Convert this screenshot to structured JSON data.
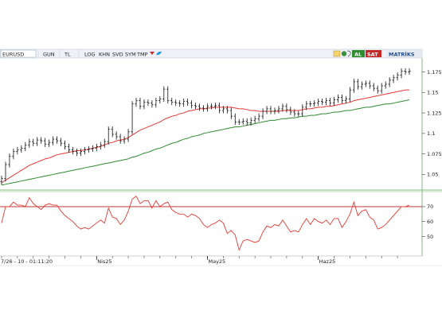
{
  "toolbar": {
    "symbol": "EURUSD",
    "buttons": [
      "GUN",
      "TL",
      "LOG",
      "KHN",
      "SVD",
      "SYM",
      "TMP"
    ],
    "al_label": "AL",
    "sat_label": "SAT",
    "brand": "MATRİKS"
  },
  "footer": {
    "timestamp": "7/26 - 10 - 01:11:20"
  },
  "colors": {
    "accent": "#1d4f91",
    "al": "#2e8b2e",
    "sat": "#c62828",
    "price_bars": "#111111",
    "ma_fast": "#e53935",
    "ma_slow": "#2e8b2e",
    "oscillator": "#e53935",
    "level_line": "#b71c1c",
    "frame_green": "#7fbf7f"
  },
  "icons": [
    "link-icon",
    "globe-icon",
    "ear-icon",
    "dropdown-arrow-icon",
    "twitter-icon"
  ],
  "chart_data": [
    {
      "type": "ohlc",
      "y_ticks": [
        "1.175",
        "1.15",
        "1.125",
        "1.1",
        "1.075",
        "1.05"
      ],
      "y_tick_values": [
        1.175,
        1.15,
        1.125,
        1.1,
        1.075,
        1.05
      ],
      "ylim": [
        1.032,
        1.19
      ],
      "x_labels": [
        {
          "label": "Nis25",
          "index": 24
        },
        {
          "label": "May25",
          "index": 52
        },
        {
          "label": "Haz25",
          "index": 80
        }
      ],
      "n_bars": 104,
      "close": [
        1.045,
        1.062,
        1.072,
        1.078,
        1.08,
        1.082,
        1.086,
        1.09,
        1.088,
        1.092,
        1.091,
        1.087,
        1.089,
        1.093,
        1.091,
        1.088,
        1.084,
        1.08,
        1.078,
        1.076,
        1.078,
        1.08,
        1.081,
        1.082,
        1.084,
        1.086,
        1.09,
        1.105,
        1.099,
        1.096,
        1.091,
        1.093,
        1.102,
        1.136,
        1.14,
        1.133,
        1.138,
        1.137,
        1.135,
        1.14,
        1.142,
        1.154,
        1.14,
        1.138,
        1.137,
        1.136,
        1.139,
        1.137,
        1.134,
        1.133,
        1.131,
        1.13,
        1.133,
        1.133,
        1.134,
        1.128,
        1.13,
        1.128,
        1.121,
        1.114,
        1.114,
        1.115,
        1.113,
        1.116,
        1.118,
        1.121,
        1.127,
        1.13,
        1.127,
        1.128,
        1.13,
        1.133,
        1.129,
        1.126,
        1.124,
        1.124,
        1.132,
        1.136,
        1.136,
        1.137,
        1.139,
        1.138,
        1.14,
        1.137,
        1.141,
        1.144,
        1.14,
        1.142,
        1.153,
        1.163,
        1.157,
        1.16,
        1.161,
        1.158,
        1.155,
        1.152,
        1.158,
        1.16,
        1.165,
        1.168,
        1.171,
        1.176,
        1.175,
        1.176
      ],
      "series": [
        {
          "name": "",
          "color": "#e53935",
          "values": [
            1.04,
            1.043,
            1.046,
            1.049,
            1.052,
            1.055,
            1.058,
            1.061,
            1.063,
            1.065,
            1.067,
            1.069,
            1.07,
            1.072,
            1.074,
            1.075,
            1.076,
            1.077,
            1.078,
            1.079,
            1.079,
            1.08,
            1.081,
            1.082,
            1.083,
            1.084,
            1.086,
            1.088,
            1.089,
            1.091,
            1.092,
            1.093,
            1.095,
            1.098,
            1.101,
            1.104,
            1.106,
            1.108,
            1.11,
            1.112,
            1.114,
            1.117,
            1.119,
            1.121,
            1.122,
            1.124,
            1.125,
            1.127,
            1.128,
            1.129,
            1.13,
            1.13,
            1.131,
            1.131,
            1.132,
            1.132,
            1.132,
            1.132,
            1.132,
            1.131,
            1.13,
            1.13,
            1.129,
            1.128,
            1.128,
            1.127,
            1.127,
            1.127,
            1.127,
            1.127,
            1.127,
            1.128,
            1.128,
            1.128,
            1.128,
            1.128,
            1.129,
            1.13,
            1.13,
            1.131,
            1.132,
            1.132,
            1.133,
            1.133,
            1.134,
            1.135,
            1.136,
            1.137,
            1.138,
            1.14,
            1.141,
            1.142,
            1.143,
            1.144,
            1.145,
            1.146,
            1.147,
            1.148,
            1.149,
            1.15,
            1.151,
            1.152,
            1.153,
            1.153
          ]
        },
        {
          "name": "",
          "color": "#2e8b2e",
          "values": [
            1.037,
            1.038,
            1.039,
            1.04,
            1.041,
            1.042,
            1.043,
            1.044,
            1.045,
            1.046,
            1.047,
            1.048,
            1.049,
            1.05,
            1.051,
            1.052,
            1.053,
            1.054,
            1.055,
            1.056,
            1.057,
            1.058,
            1.059,
            1.06,
            1.061,
            1.062,
            1.063,
            1.064,
            1.065,
            1.066,
            1.067,
            1.068,
            1.069,
            1.071,
            1.072,
            1.074,
            1.076,
            1.077,
            1.079,
            1.081,
            1.082,
            1.084,
            1.086,
            1.088,
            1.089,
            1.091,
            1.093,
            1.094,
            1.096,
            1.097,
            1.098,
            1.1,
            1.101,
            1.102,
            1.103,
            1.104,
            1.105,
            1.106,
            1.107,
            1.108,
            1.108,
            1.109,
            1.11,
            1.111,
            1.112,
            1.113,
            1.114,
            1.115,
            1.116,
            1.116,
            1.117,
            1.118,
            1.118,
            1.119,
            1.119,
            1.12,
            1.121,
            1.121,
            1.122,
            1.122,
            1.123,
            1.124,
            1.124,
            1.125,
            1.126,
            1.126,
            1.127,
            1.128,
            1.128,
            1.129,
            1.13,
            1.131,
            1.132,
            1.132,
            1.133,
            1.134,
            1.135,
            1.136,
            1.136,
            1.137,
            1.138,
            1.139,
            1.14,
            1.141
          ]
        }
      ]
    },
    {
      "type": "line",
      "y_ticks": [
        "70",
        "60",
        "50"
      ],
      "y_tick_values": [
        70,
        60,
        50
      ],
      "ylim": [
        38,
        79
      ],
      "reference_line": 70,
      "series": [
        {
          "name": "",
          "color": "#e53935",
          "values": [
            59,
            70,
            70,
            73,
            71,
            71,
            70,
            76,
            72,
            70,
            68,
            71,
            72,
            71,
            71,
            67,
            64,
            62,
            60,
            57,
            55,
            56,
            55,
            57,
            59,
            61,
            59,
            69,
            63,
            62,
            58,
            61,
            67,
            75,
            77,
            72,
            74,
            74,
            69,
            74,
            70,
            72,
            73,
            68,
            66,
            65,
            65,
            63,
            65,
            64,
            62,
            58,
            56,
            58,
            59,
            61,
            59,
            52,
            54,
            51,
            41,
            47,
            48,
            47,
            46,
            47,
            53,
            57,
            56,
            58,
            57,
            61,
            57,
            53,
            54,
            53,
            58,
            62,
            58,
            62,
            60,
            59,
            61,
            58,
            62,
            62,
            56,
            60,
            65,
            73,
            64,
            67,
            68,
            63,
            61,
            55,
            56,
            58,
            61,
            64,
            67,
            70,
            70,
            71
          ]
        }
      ]
    }
  ]
}
